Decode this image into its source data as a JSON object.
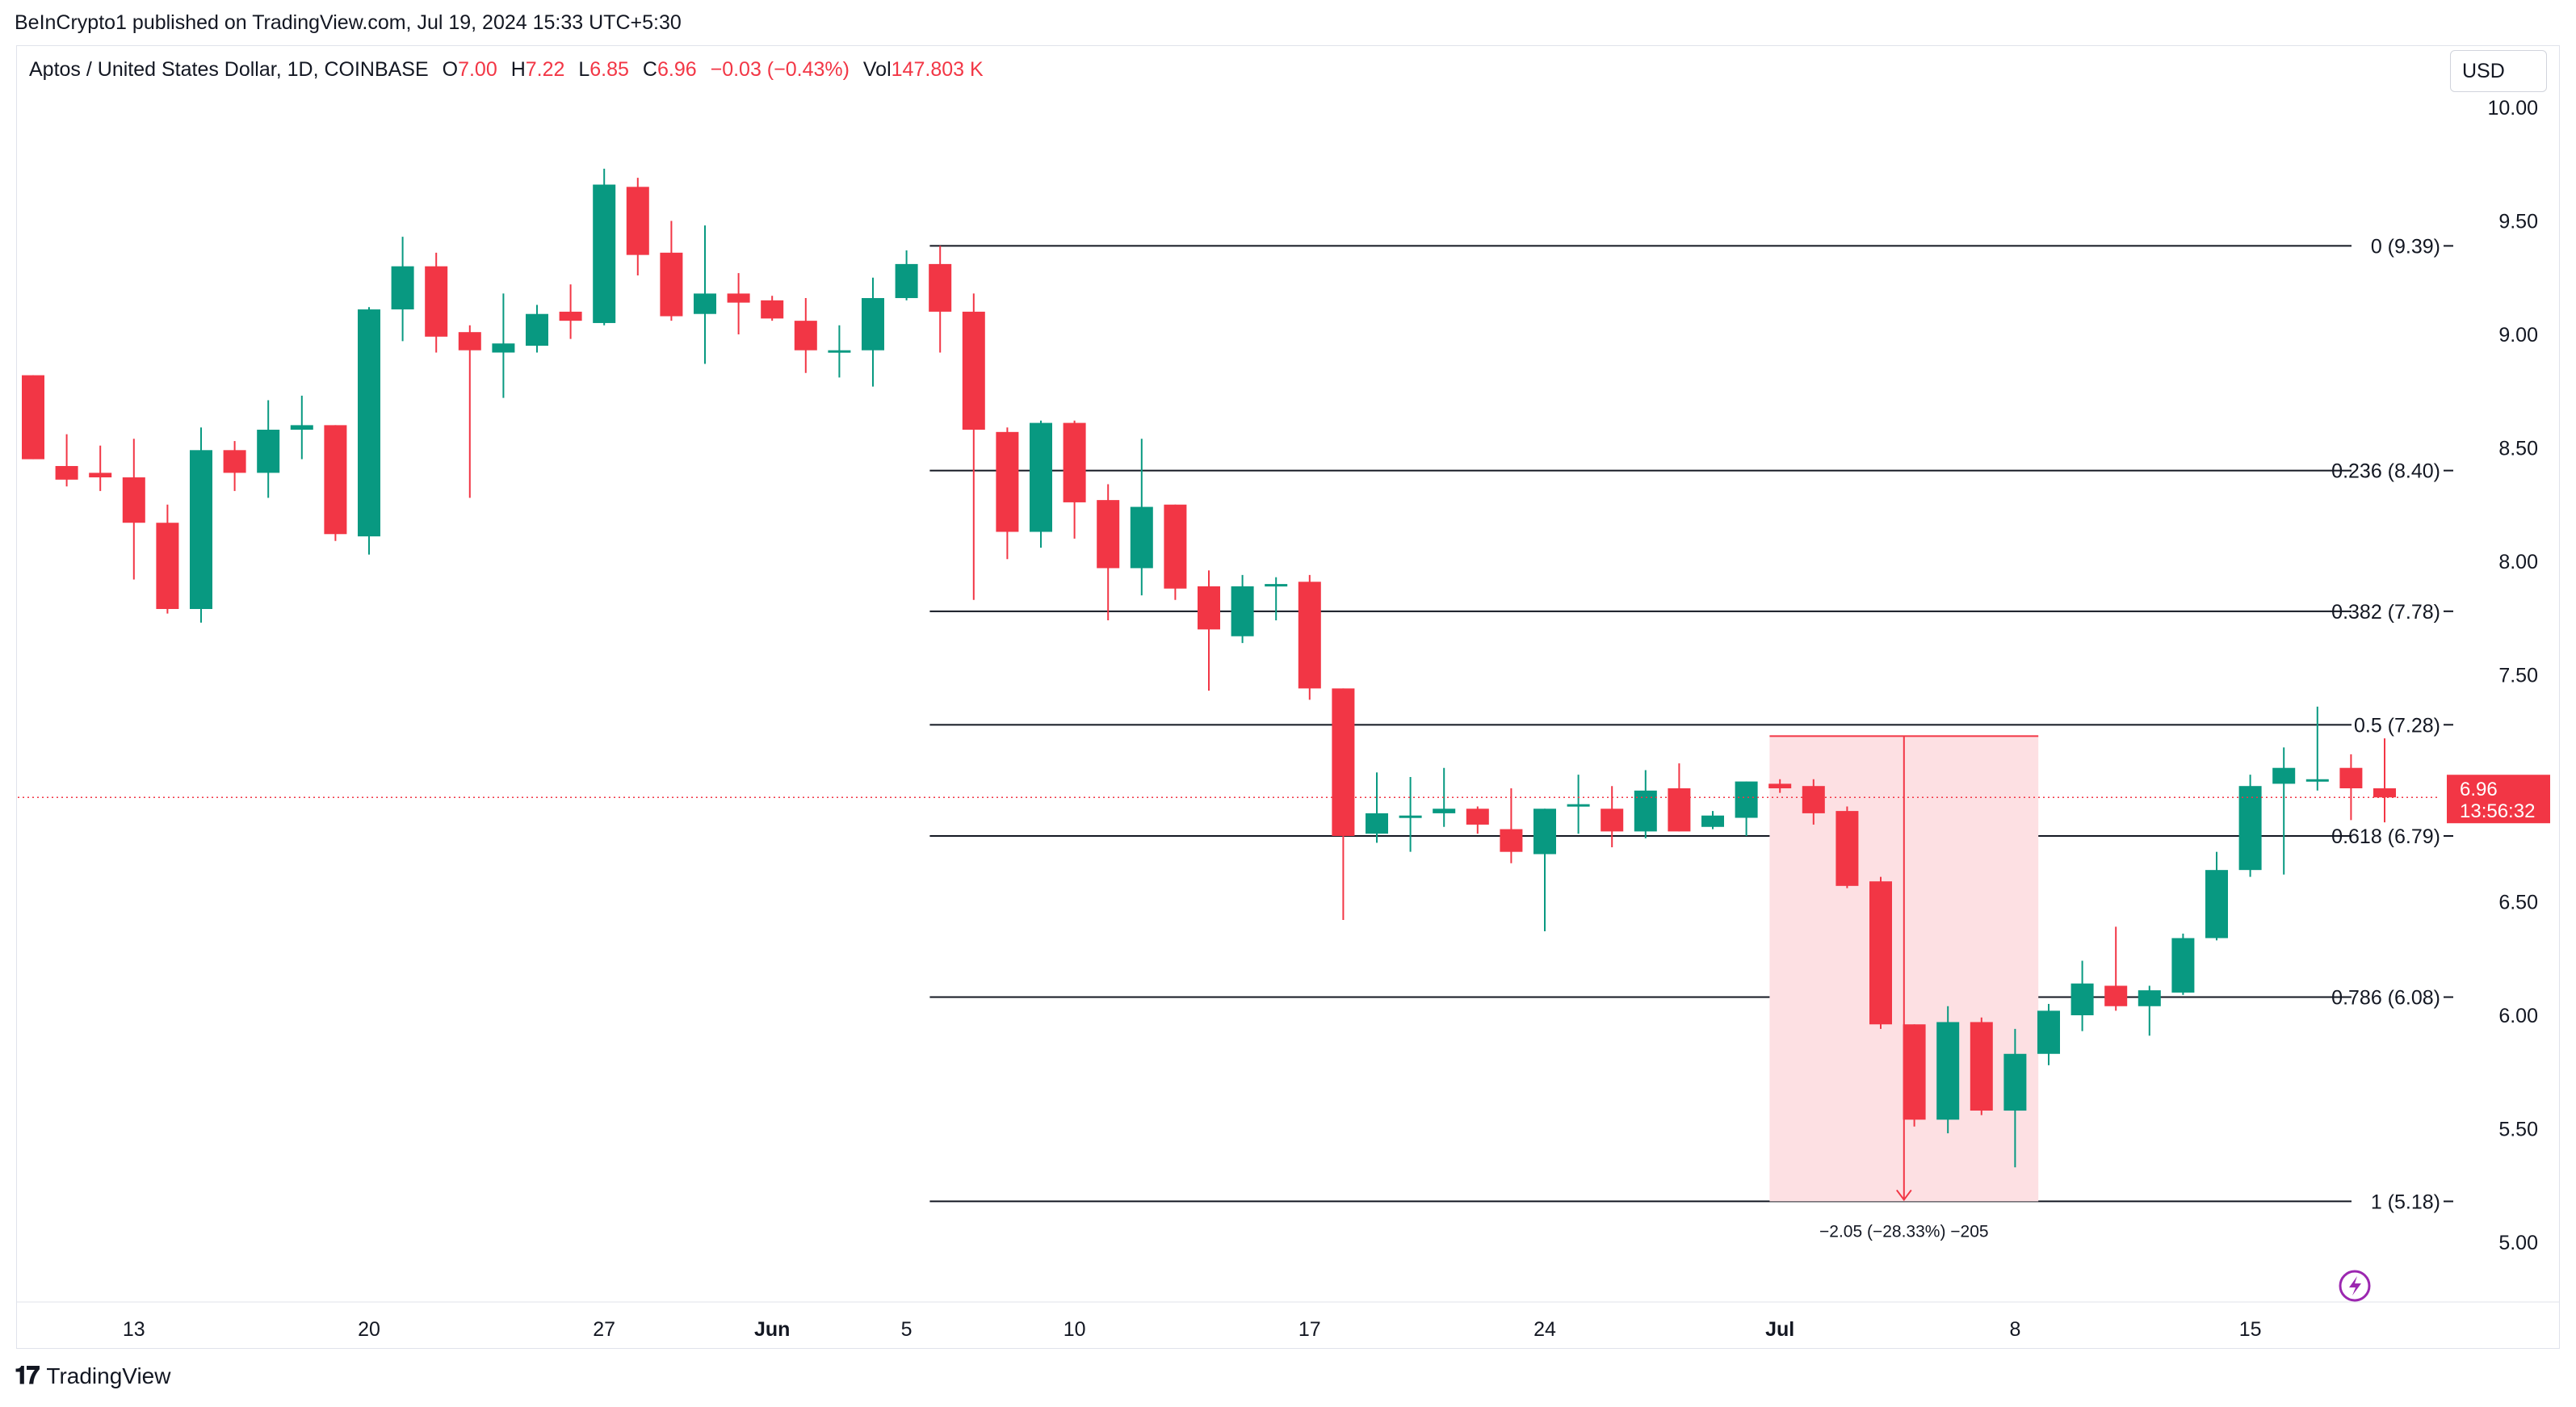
{
  "published": "BeInCrypto1 published on TradingView.com, Jul 19, 2024 15:33 UTC+5:30",
  "legend": {
    "symbol": "Aptos / United States Dollar, 1D, COINBASE",
    "o_label": "O",
    "o": "7.00",
    "h_label": "H",
    "h": "7.22",
    "l_label": "L",
    "l": "6.85",
    "c_label": "C",
    "c": "6.96",
    "change": "−0.03 (−0.43%)",
    "vol_label": "Vol",
    "vol": "147.803 K"
  },
  "currency": "USD",
  "price_tag": {
    "price": "6.96",
    "countdown": "13:56:32"
  },
  "measure_label": "−2.05 (−28.33%) −205",
  "brand": "TradingView",
  "colors": {
    "up": "#089981",
    "down": "#f23645",
    "text": "#131722",
    "measure_fill": "#fde0e3"
  },
  "chart_data": {
    "type": "candlestick",
    "timeframe": "1D",
    "y_ticks": [
      "10.00",
      "9.50",
      "9.00",
      "8.50",
      "8.00",
      "7.50",
      "7.00",
      "6.50",
      "6.00",
      "5.50",
      "5.00"
    ],
    "ylim": [
      4.75,
      10.25
    ],
    "x_ticks": [
      {
        "label": "13",
        "i": 3
      },
      {
        "label": "20",
        "i": 10
      },
      {
        "label": "27",
        "i": 17
      },
      {
        "label": "Jun",
        "i": 22
      },
      {
        "label": "5",
        "i": 26
      },
      {
        "label": "10",
        "i": 31
      },
      {
        "label": "17",
        "i": 38
      },
      {
        "label": "24",
        "i": 45
      },
      {
        "label": "Jul",
        "i": 52
      },
      {
        "label": "8",
        "i": 59
      },
      {
        "label": "15",
        "i": 66
      }
    ],
    "candles": [
      {
        "o": 8.82,
        "h": 8.82,
        "l": 8.45,
        "c": 8.45
      },
      {
        "o": 8.42,
        "h": 8.56,
        "l": 8.33,
        "c": 8.36
      },
      {
        "o": 8.39,
        "h": 8.51,
        "l": 8.31,
        "c": 8.37
      },
      {
        "o": 8.37,
        "h": 8.54,
        "l": 7.92,
        "c": 8.17
      },
      {
        "o": 8.17,
        "h": 8.25,
        "l": 7.77,
        "c": 7.79
      },
      {
        "o": 7.79,
        "h": 8.59,
        "l": 7.73,
        "c": 8.49
      },
      {
        "o": 8.49,
        "h": 8.53,
        "l": 8.31,
        "c": 8.39
      },
      {
        "o": 8.39,
        "h": 8.71,
        "l": 8.28,
        "c": 8.58
      },
      {
        "o": 8.58,
        "h": 8.73,
        "l": 8.45,
        "c": 8.6
      },
      {
        "o": 8.6,
        "h": 8.6,
        "l": 8.09,
        "c": 8.12
      },
      {
        "o": 8.11,
        "h": 9.12,
        "l": 8.03,
        "c": 9.11
      },
      {
        "o": 9.11,
        "h": 9.43,
        "l": 8.97,
        "c": 9.3
      },
      {
        "o": 9.3,
        "h": 9.36,
        "l": 8.92,
        "c": 8.99
      },
      {
        "o": 9.01,
        "h": 9.04,
        "l": 8.28,
        "c": 8.93
      },
      {
        "o": 8.92,
        "h": 9.18,
        "l": 8.72,
        "c": 8.96
      },
      {
        "o": 8.95,
        "h": 9.13,
        "l": 8.92,
        "c": 9.09
      },
      {
        "o": 9.1,
        "h": 9.22,
        "l": 8.98,
        "c": 9.06
      },
      {
        "o": 9.05,
        "h": 9.73,
        "l": 9.04,
        "c": 9.66
      },
      {
        "o": 9.65,
        "h": 9.69,
        "l": 9.26,
        "c": 9.35
      },
      {
        "o": 9.36,
        "h": 9.5,
        "l": 9.06,
        "c": 9.08
      },
      {
        "o": 9.09,
        "h": 9.48,
        "l": 8.87,
        "c": 9.18
      },
      {
        "o": 9.18,
        "h": 9.27,
        "l": 9.0,
        "c": 9.14
      },
      {
        "o": 9.15,
        "h": 9.17,
        "l": 9.06,
        "c": 9.07
      },
      {
        "o": 9.06,
        "h": 9.16,
        "l": 8.83,
        "c": 8.93
      },
      {
        "o": 8.92,
        "h": 9.04,
        "l": 8.81,
        "c": 8.93
      },
      {
        "o": 8.93,
        "h": 9.25,
        "l": 8.77,
        "c": 9.16
      },
      {
        "o": 9.16,
        "h": 9.37,
        "l": 9.15,
        "c": 9.31
      },
      {
        "o": 9.31,
        "h": 9.39,
        "l": 8.92,
        "c": 9.1
      },
      {
        "o": 9.1,
        "h": 9.18,
        "l": 7.83,
        "c": 8.58
      },
      {
        "o": 8.57,
        "h": 8.59,
        "l": 8.01,
        "c": 8.13
      },
      {
        "o": 8.13,
        "h": 8.62,
        "l": 8.06,
        "c": 8.61
      },
      {
        "o": 8.61,
        "h": 8.62,
        "l": 8.1,
        "c": 8.26
      },
      {
        "o": 8.27,
        "h": 8.34,
        "l": 7.74,
        "c": 7.97
      },
      {
        "o": 7.97,
        "h": 8.54,
        "l": 7.85,
        "c": 8.24
      },
      {
        "o": 8.25,
        "h": 8.25,
        "l": 7.83,
        "c": 7.88
      },
      {
        "o": 7.89,
        "h": 7.96,
        "l": 7.43,
        "c": 7.7
      },
      {
        "o": 7.67,
        "h": 7.94,
        "l": 7.64,
        "c": 7.89
      },
      {
        "o": 7.89,
        "h": 7.93,
        "l": 7.74,
        "c": 7.9
      },
      {
        "o": 7.91,
        "h": 7.94,
        "l": 7.39,
        "c": 7.44
      },
      {
        "o": 7.44,
        "h": 7.44,
        "l": 6.42,
        "c": 6.79
      },
      {
        "o": 6.8,
        "h": 7.07,
        "l": 6.76,
        "c": 6.89
      },
      {
        "o": 6.87,
        "h": 7.05,
        "l": 6.72,
        "c": 6.88
      },
      {
        "o": 6.89,
        "h": 7.09,
        "l": 6.83,
        "c": 6.91
      },
      {
        "o": 6.91,
        "h": 6.92,
        "l": 6.8,
        "c": 6.84
      },
      {
        "o": 6.82,
        "h": 7.0,
        "l": 6.67,
        "c": 6.72
      },
      {
        "o": 6.71,
        "h": 6.91,
        "l": 6.37,
        "c": 6.91
      },
      {
        "o": 6.92,
        "h": 7.06,
        "l": 6.8,
        "c": 6.93
      },
      {
        "o": 6.91,
        "h": 7.01,
        "l": 6.74,
        "c": 6.81
      },
      {
        "o": 6.81,
        "h": 7.08,
        "l": 6.78,
        "c": 6.99
      },
      {
        "o": 7.0,
        "h": 7.11,
        "l": 6.81,
        "c": 6.81
      },
      {
        "o": 6.83,
        "h": 6.9,
        "l": 6.82,
        "c": 6.88
      },
      {
        "o": 6.87,
        "h": 7.03,
        "l": 6.79,
        "c": 7.03
      },
      {
        "o": 7.02,
        "h": 7.04,
        "l": 6.98,
        "c": 7.0
      },
      {
        "o": 7.01,
        "h": 7.04,
        "l": 6.84,
        "c": 6.89
      },
      {
        "o": 6.9,
        "h": 6.92,
        "l": 6.56,
        "c": 6.57
      },
      {
        "o": 6.59,
        "h": 6.61,
        "l": 5.94,
        "c": 5.96
      },
      {
        "o": 5.96,
        "h": 5.96,
        "l": 5.51,
        "c": 5.54
      },
      {
        "o": 5.54,
        "h": 6.04,
        "l": 5.48,
        "c": 5.97
      },
      {
        "o": 5.97,
        "h": 5.99,
        "l": 5.56,
        "c": 5.58
      },
      {
        "o": 5.58,
        "h": 5.94,
        "l": 5.33,
        "c": 5.83
      },
      {
        "o": 5.83,
        "h": 6.05,
        "l": 5.78,
        "c": 6.02
      },
      {
        "o": 6.0,
        "h": 6.24,
        "l": 5.93,
        "c": 6.14
      },
      {
        "o": 6.13,
        "h": 6.39,
        "l": 6.02,
        "c": 6.04
      },
      {
        "o": 6.04,
        "h": 6.13,
        "l": 5.91,
        "c": 6.11
      },
      {
        "o": 6.1,
        "h": 6.36,
        "l": 6.09,
        "c": 6.34
      },
      {
        "o": 6.34,
        "h": 6.72,
        "l": 6.33,
        "c": 6.64
      },
      {
        "o": 6.64,
        "h": 7.06,
        "l": 6.61,
        "c": 7.01
      },
      {
        "o": 7.02,
        "h": 7.18,
        "l": 6.62,
        "c": 7.09
      },
      {
        "o": 7.03,
        "h": 7.36,
        "l": 6.99,
        "c": 7.04
      },
      {
        "o": 7.09,
        "h": 7.15,
        "l": 6.86,
        "c": 7.0
      },
      {
        "o": 7.0,
        "h": 7.22,
        "l": 6.85,
        "c": 6.96
      }
    ],
    "fib_levels": [
      {
        "ratio": "0",
        "price": 9.39,
        "label": "0 (9.39)"
      },
      {
        "ratio": "0.236",
        "price": 8.4,
        "label": "0.236 (8.40)"
      },
      {
        "ratio": "0.382",
        "price": 7.78,
        "label": "0.382 (7.78)"
      },
      {
        "ratio": "0.5",
        "price": 7.28,
        "label": "0.5 (7.28)"
      },
      {
        "ratio": "0.618",
        "price": 6.79,
        "label": "0.618 (6.79)"
      },
      {
        "ratio": "0.786",
        "price": 6.08,
        "label": "0.786 (6.08)"
      },
      {
        "ratio": "1",
        "price": 5.18,
        "label": "1 (5.18)"
      }
    ],
    "fib_start_index": 26.5,
    "measure": {
      "from_price": 7.23,
      "to_price": 5.18,
      "start_index": 51.5,
      "end_index": 59.5
    },
    "last_price": 6.96
  }
}
